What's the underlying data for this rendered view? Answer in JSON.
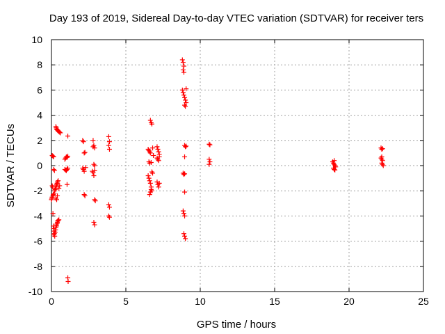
{
  "chart_data": {
    "type": "scatter",
    "title": "Day 193 of 2019, Sidereal Day-to-day VTEC variation (SDTVAR) for receiver ters",
    "xlabel": "GPS time / hours",
    "ylabel": "SDTVAR / TECUs",
    "xlim": [
      0,
      25
    ],
    "ylim": [
      -10,
      10
    ],
    "xticks": [
      0,
      5,
      10,
      15,
      20,
      25
    ],
    "yticks": [
      -10,
      -8,
      -6,
      -4,
      -2,
      0,
      2,
      4,
      6,
      8,
      10
    ],
    "grid": true,
    "marker": "+",
    "color": "#ff0000",
    "series": [
      {
        "name": "SDTVAR",
        "points": [
          [
            0.0,
            -2.7
          ],
          [
            0.02,
            -2.6
          ],
          [
            0.05,
            -2.5
          ],
          [
            0.05,
            -1.6
          ],
          [
            0.08,
            -1.7
          ],
          [
            0.1,
            -2.4
          ],
          [
            0.12,
            -2.3
          ],
          [
            0.05,
            0.8
          ],
          [
            0.1,
            0.75
          ],
          [
            0.15,
            0.7
          ],
          [
            0.15,
            -0.3
          ],
          [
            0.2,
            -0.4
          ],
          [
            0.18,
            -2.2
          ],
          [
            0.22,
            -2.0
          ],
          [
            0.25,
            -1.9
          ],
          [
            0.28,
            -1.8
          ],
          [
            0.3,
            -1.7
          ],
          [
            0.32,
            -1.6
          ],
          [
            0.35,
            -1.5
          ],
          [
            0.38,
            -1.4
          ],
          [
            0.4,
            -1.3
          ],
          [
            0.45,
            -1.2
          ],
          [
            0.1,
            -3.8
          ],
          [
            0.12,
            -4.8
          ],
          [
            0.15,
            -5.0
          ],
          [
            0.18,
            -5.2
          ],
          [
            0.2,
            -5.4
          ],
          [
            0.22,
            -5.6
          ],
          [
            0.15,
            -5.5
          ],
          [
            0.25,
            -5.3
          ],
          [
            0.28,
            -5.1
          ],
          [
            0.3,
            -4.9
          ],
          [
            0.33,
            -4.8
          ],
          [
            0.35,
            -4.7
          ],
          [
            0.38,
            -4.6
          ],
          [
            0.4,
            -4.5
          ],
          [
            0.42,
            -4.4
          ],
          [
            0.45,
            -4.35
          ],
          [
            0.5,
            -4.3
          ],
          [
            0.3,
            3.1
          ],
          [
            0.32,
            3.0
          ],
          [
            0.35,
            2.9
          ],
          [
            0.38,
            2.85
          ],
          [
            0.42,
            2.8
          ],
          [
            0.45,
            2.75
          ],
          [
            0.5,
            2.7
          ],
          [
            0.55,
            2.65
          ],
          [
            0.6,
            2.6
          ],
          [
            0.3,
            -2.6
          ],
          [
            0.35,
            -2.7
          ],
          [
            0.4,
            -2.4
          ],
          [
            0.5,
            -1.8
          ],
          [
            0.55,
            -1.6
          ],
          [
            0.9,
            0.5
          ],
          [
            0.95,
            0.6
          ],
          [
            1.0,
            0.7
          ],
          [
            1.05,
            0.65
          ],
          [
            1.1,
            0.75
          ],
          [
            0.9,
            -0.3
          ],
          [
            0.95,
            -0.35
          ],
          [
            1.0,
            -0.4
          ],
          [
            1.05,
            -0.3
          ],
          [
            1.1,
            -0.2
          ],
          [
            1.1,
            2.35
          ],
          [
            1.05,
            -1.5
          ],
          [
            1.1,
            -8.9
          ],
          [
            1.12,
            -9.2
          ],
          [
            2.1,
            2.0
          ],
          [
            2.15,
            1.9
          ],
          [
            2.2,
            1.0
          ],
          [
            2.25,
            1.05
          ],
          [
            2.1,
            -0.2
          ],
          [
            2.15,
            -0.3
          ],
          [
            2.2,
            -0.45
          ],
          [
            2.3,
            -0.15
          ],
          [
            2.2,
            -2.3
          ],
          [
            2.25,
            -2.4
          ],
          [
            2.8,
            2.0
          ],
          [
            2.85,
            1.6
          ],
          [
            2.9,
            1.4
          ],
          [
            2.8,
            1.5
          ],
          [
            2.85,
            0.1
          ],
          [
            2.9,
            0.0
          ],
          [
            2.75,
            -0.45
          ],
          [
            2.8,
            -0.55
          ],
          [
            2.9,
            -0.4
          ],
          [
            2.85,
            -0.8
          ],
          [
            2.9,
            -2.7
          ],
          [
            2.95,
            -2.8
          ],
          [
            2.85,
            -4.5
          ],
          [
            2.9,
            -4.7
          ],
          [
            3.85,
            2.3
          ],
          [
            3.9,
            1.9
          ],
          [
            3.85,
            1.6
          ],
          [
            3.9,
            1.3
          ],
          [
            3.85,
            -3.1
          ],
          [
            3.9,
            -3.3
          ],
          [
            3.85,
            -4.0
          ],
          [
            3.9,
            -4.1
          ],
          [
            6.5,
            1.3
          ],
          [
            6.55,
            1.2
          ],
          [
            6.6,
            1.1
          ],
          [
            6.65,
            1.0
          ],
          [
            6.55,
            0.3
          ],
          [
            6.6,
            0.2
          ],
          [
            6.7,
            0.25
          ],
          [
            6.5,
            -0.8
          ],
          [
            6.55,
            -1.0
          ],
          [
            6.6,
            -1.2
          ],
          [
            6.65,
            -1.4
          ],
          [
            6.7,
            -1.7
          ],
          [
            6.75,
            -2.0
          ],
          [
            6.6,
            -2.3
          ],
          [
            6.65,
            -2.1
          ],
          [
            6.7,
            -1.9
          ],
          [
            6.75,
            -0.5
          ],
          [
            6.8,
            -0.6
          ],
          [
            6.65,
            3.6
          ],
          [
            6.7,
            3.4
          ],
          [
            6.75,
            3.3
          ],
          [
            6.8,
            1.4
          ],
          [
            6.85,
            0.8
          ],
          [
            7.1,
            1.5
          ],
          [
            7.15,
            1.3
          ],
          [
            7.2,
            1.1
          ],
          [
            7.25,
            0.9
          ],
          [
            7.1,
            0.6
          ],
          [
            7.15,
            0.5
          ],
          [
            7.2,
            0.4
          ],
          [
            7.25,
            0.7
          ],
          [
            7.1,
            -1.3
          ],
          [
            7.15,
            -1.5
          ],
          [
            7.2,
            -1.7
          ],
          [
            7.25,
            -1.4
          ],
          [
            8.8,
            8.4
          ],
          [
            8.85,
            8.2
          ],
          [
            8.9,
            7.9
          ],
          [
            8.85,
            7.6
          ],
          [
            8.9,
            7.4
          ],
          [
            8.8,
            6.0
          ],
          [
            8.85,
            5.8
          ],
          [
            8.9,
            5.6
          ],
          [
            8.95,
            5.4
          ],
          [
            9.0,
            5.2
          ],
          [
            9.05,
            5.0
          ],
          [
            8.95,
            4.8
          ],
          [
            9.0,
            4.7
          ],
          [
            9.05,
            6.1
          ],
          [
            8.95,
            1.6
          ],
          [
            9.0,
            1.5
          ],
          [
            9.05,
            1.55
          ],
          [
            8.95,
            0.7
          ],
          [
            8.85,
            -0.6
          ],
          [
            8.9,
            -0.7
          ],
          [
            8.95,
            -0.65
          ],
          [
            8.95,
            -2.1
          ],
          [
            8.85,
            -3.6
          ],
          [
            8.9,
            -3.8
          ],
          [
            8.95,
            -4.0
          ],
          [
            8.9,
            -5.4
          ],
          [
            8.95,
            -5.6
          ],
          [
            9.0,
            -5.8
          ],
          [
            10.6,
            1.7
          ],
          [
            10.65,
            1.65
          ],
          [
            10.6,
            0.5
          ],
          [
            10.65,
            0.3
          ],
          [
            10.6,
            0.1
          ],
          [
            18.9,
            0.3
          ],
          [
            18.95,
            0.2
          ],
          [
            19.0,
            0.1
          ],
          [
            19.05,
            0.0
          ],
          [
            19.1,
            -0.1
          ],
          [
            18.95,
            -0.2
          ],
          [
            19.0,
            -0.3
          ],
          [
            19.05,
            -0.35
          ],
          [
            19.0,
            0.4
          ],
          [
            22.15,
            1.4
          ],
          [
            22.2,
            1.3
          ],
          [
            22.25,
            1.35
          ],
          [
            22.15,
            0.6
          ],
          [
            22.2,
            0.5
          ],
          [
            22.25,
            0.4
          ],
          [
            22.2,
            0.2
          ],
          [
            22.25,
            0.1
          ],
          [
            22.3,
            0.0
          ],
          [
            22.2,
            0.7
          ]
        ]
      }
    ]
  }
}
